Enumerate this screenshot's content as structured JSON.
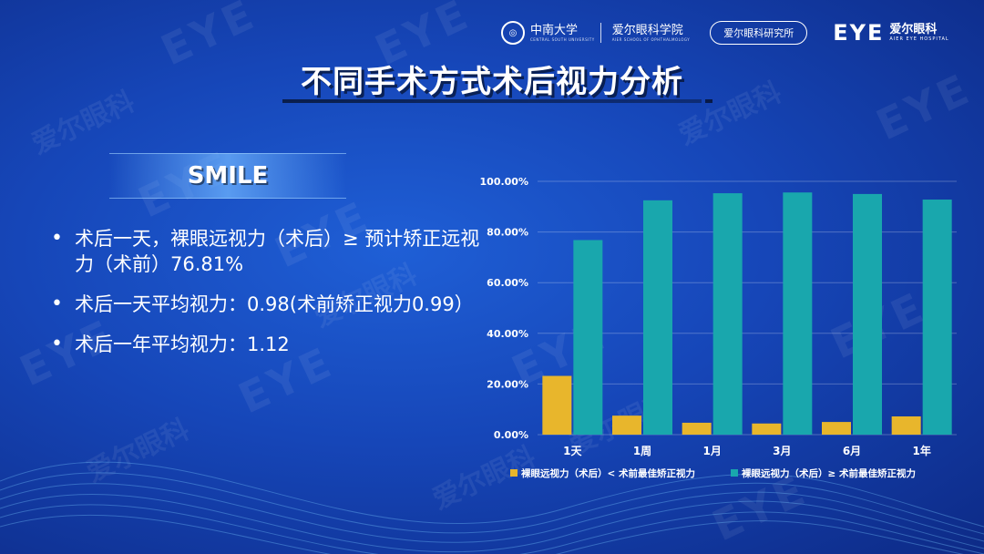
{
  "header": {
    "university_name": "中南大学",
    "university_sub": "CENTRAL SOUTH UNIVERSITY",
    "school_name": "爱尔眼科学院",
    "school_sub": "AIER SCHOOL OF OPHTHALMOLOGY",
    "institute_label": "爱尔眼科研究所",
    "hospital_mark": "EYE",
    "hospital_name": "爱尔眼科",
    "hospital_en": "AIER EYE HOSPITAL"
  },
  "watermark": {
    "eye": "EYE",
    "cn": "爱尔眼科"
  },
  "slide": {
    "title": "不同手术方式术后视力分析",
    "section_label": "SMILE",
    "bullets": [
      "术后一天，裸眼远视力（术后）≥ 预计矫正远视力（术前）76.81%",
      "术后一天平均视力：0.98(术前矫正视力0.99）",
      "术后一年平均视力：1.12"
    ]
  },
  "colors": {
    "series1": "#e8b62c",
    "series2": "#19a7ad"
  },
  "chart_data": {
    "type": "bar",
    "categories": [
      "1天",
      "1周",
      "1月",
      "3月",
      "6月",
      "1年"
    ],
    "series": [
      {
        "name": "裸眼远视力（术后）< 术前最佳矫正视力",
        "values": [
          23.19,
          7.5,
          4.7,
          4.4,
          5.0,
          7.2
        ]
      },
      {
        "name": "裸眼远视力（术后）≥ 术前最佳矫正视力",
        "values": [
          76.81,
          92.5,
          95.3,
          95.6,
          95.0,
          92.8
        ]
      }
    ],
    "yticks": [
      "0.00%",
      "20.00%",
      "40.00%",
      "60.00%",
      "80.00%",
      "100.00%"
    ],
    "ylim": [
      0,
      100
    ],
    "grid": true,
    "legend_position": "bottom"
  }
}
